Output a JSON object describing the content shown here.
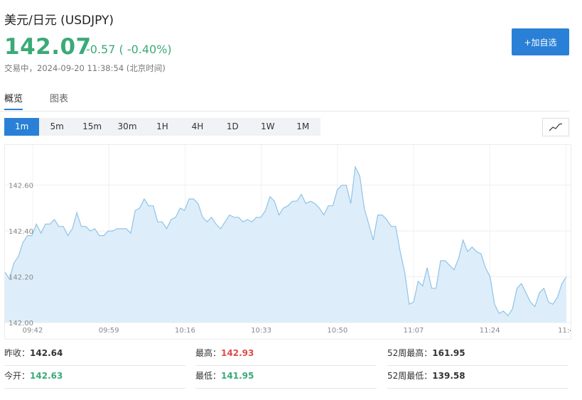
{
  "header": {
    "title": "美元/日元  (USDJPY)",
    "price": "142.07",
    "change": "-0.57 ( -0.40%)",
    "status": "交易中，2024-09-20 11:38:54 (北京时间)",
    "add_button": "+加自选"
  },
  "tabs": [
    {
      "label": "概览",
      "active": true
    },
    {
      "label": "图表",
      "active": false
    }
  ],
  "periods": [
    "1m",
    "5m",
    "15m",
    "30m",
    "1H",
    "4H",
    "1D",
    "1W",
    "1M"
  ],
  "active_period": "1m",
  "colors": {
    "accent": "#2a80d6",
    "up": "#e04a4a",
    "down": "#3aaa78",
    "line": "#8fc3e8",
    "fill": "#ddeefa"
  },
  "chart_data": {
    "type": "area",
    "xlabel": "",
    "ylabel": "",
    "ylim": [
      142.0,
      142.72
    ],
    "yticks": [
      "142.00",
      "142.20",
      "142.40",
      "142.60"
    ],
    "xticks": [
      "09:42",
      "09:59",
      "10:16",
      "10:33",
      "10:50",
      "11:07",
      "11:24",
      "11:4"
    ],
    "grid": true,
    "series": [
      {
        "values": [
          142.22,
          142.19,
          142.26,
          142.29,
          142.35,
          142.38,
          142.38,
          142.43,
          142.39,
          142.43,
          142.43,
          142.45,
          142.42,
          142.42,
          142.38,
          142.41,
          142.48,
          142.42,
          142.42,
          142.4,
          142.41,
          142.38,
          142.38,
          142.4,
          142.4,
          142.41,
          142.41,
          142.41,
          142.39,
          142.49,
          142.5,
          142.54,
          142.51,
          142.51,
          142.44,
          142.44,
          142.41,
          142.45,
          142.46,
          142.5,
          142.49,
          142.54,
          142.54,
          142.52,
          142.46,
          142.44,
          142.46,
          142.43,
          142.41,
          142.44,
          142.47,
          142.46,
          142.46,
          142.44,
          142.45,
          142.44,
          142.46,
          142.46,
          142.49,
          142.55,
          142.53,
          142.47,
          142.5,
          142.51,
          142.53,
          142.53,
          142.56,
          142.52,
          142.53,
          142.52,
          142.5,
          142.47,
          142.51,
          142.51,
          142.58,
          142.6,
          142.6,
          142.52,
          142.68,
          142.64,
          142.5,
          142.43,
          142.36,
          142.47,
          142.47,
          142.45,
          142.42,
          142.42,
          142.31,
          142.22,
          142.08,
          142.09,
          142.18,
          142.16,
          142.24,
          142.15,
          142.15,
          142.27,
          142.27,
          142.25,
          142.23,
          142.28,
          142.36,
          142.31,
          142.33,
          142.31,
          142.3,
          142.24,
          142.2,
          142.08,
          142.04,
          142.05,
          142.03,
          142.06,
          142.15,
          142.17,
          142.13,
          142.09,
          142.07,
          142.13,
          142.15,
          142.09,
          142.08,
          142.11,
          142.17,
          142.2
        ]
      }
    ]
  },
  "stats": [
    {
      "label": "昨收：",
      "value": "142.64",
      "tone": "neutral"
    },
    {
      "label": "最高：",
      "value": "142.93",
      "tone": "up"
    },
    {
      "label": "52周最高：",
      "value": "161.95",
      "tone": "neutral"
    },
    {
      "label": "今开：",
      "value": "142.63",
      "tone": "down"
    },
    {
      "label": "最低：",
      "value": "141.95",
      "tone": "down"
    },
    {
      "label": "52周最低：",
      "value": "139.58",
      "tone": "neutral"
    }
  ]
}
